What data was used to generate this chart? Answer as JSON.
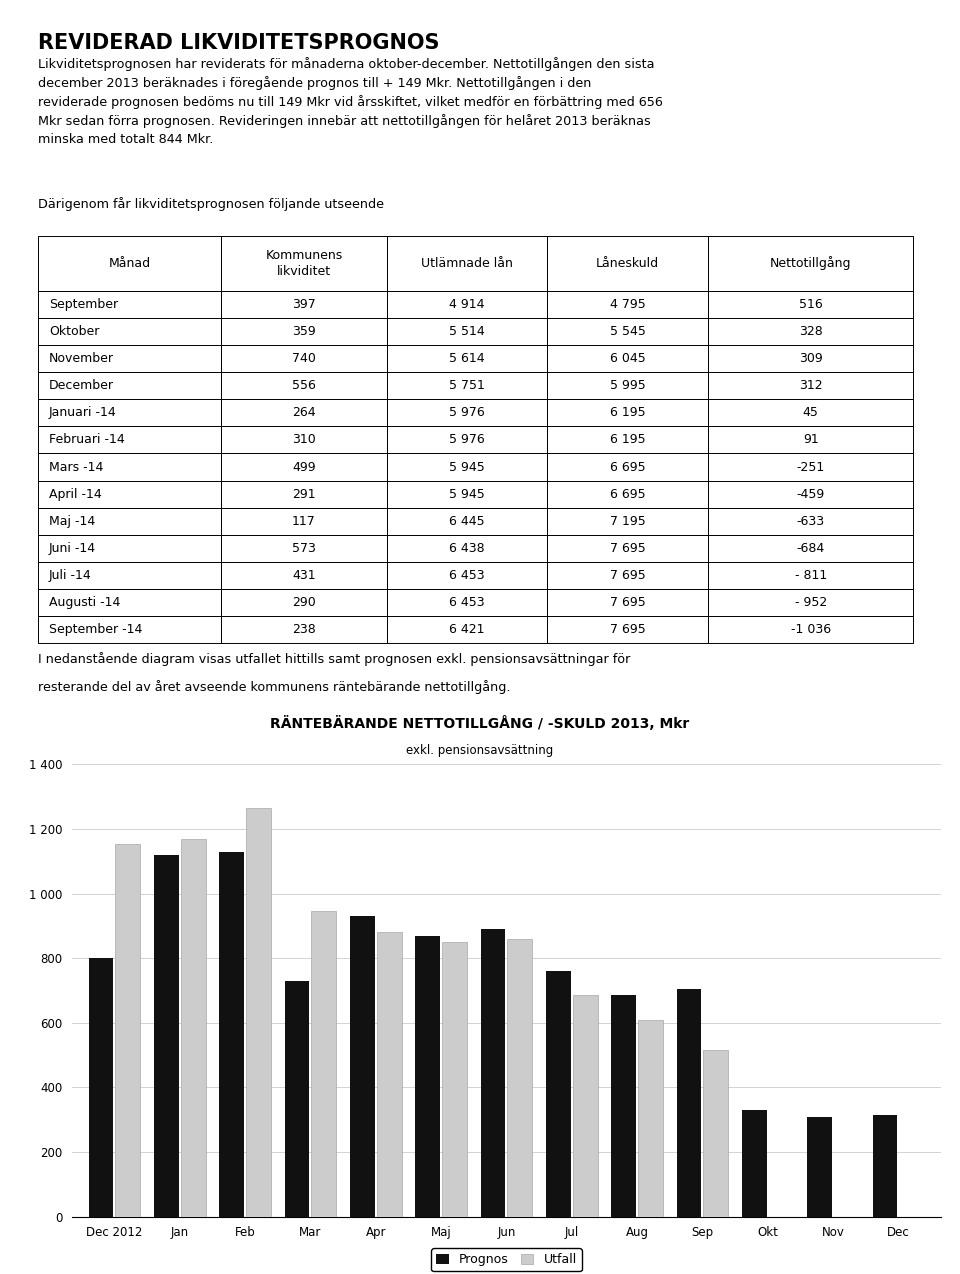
{
  "title": "REVIDERAD LIKVIDITETSPROGNOS",
  "intro_text": "Likviditetsprognosen har reviderats för månaderna oktober-december. Nettotillgången den sista\ndecember 2013 beräknades i föregående prognos till + 149 Mkr. Nettotillgången i den\nreviderade prognosen bedöms nu till 149 Mkr vid årsskiftet, vilket medför en förbättring med 656\nMkr sedan förra prognosen. Revideringen innebär att nettotillgången för helåret 2013 beräknas\nminska med totalt 844 Mkr.",
  "paragraph2": "Därigenom får likviditetsprognosen följande utseende",
  "chart_paragraph1": "I nedanstående diagram visas utfallet hittills samt prognosen exkl. pensionsavsättningar för",
  "chart_paragraph2": "resterande del av året avseende kommunens räntebärande nettotillgång.",
  "table_headers": [
    "Månad",
    "Kommunens\nlikviditet",
    "Utlämnade lån",
    "Låneskuld",
    "Nettotillgång"
  ],
  "table_data": [
    [
      "September",
      "397",
      "4 914",
      "4 795",
      "516"
    ],
    [
      "Oktober",
      "359",
      "5 514",
      "5 545",
      "328"
    ],
    [
      "November",
      "740",
      "5 614",
      "6 045",
      "309"
    ],
    [
      "December",
      "556",
      "5 751",
      "5 995",
      "312"
    ],
    [
      "Januari -14",
      "264",
      "5 976",
      "6 195",
      "45"
    ],
    [
      "Februari -14",
      "310",
      "5 976",
      "6 195",
      "91"
    ],
    [
      "Mars -14",
      "499",
      "5 945",
      "6 695",
      "-251"
    ],
    [
      "April -14",
      "291",
      "5 945",
      "6 695",
      "-459"
    ],
    [
      "Maj -14",
      "117",
      "6 445",
      "7 195",
      "-633"
    ],
    [
      "Juni -14",
      "573",
      "6 438",
      "7 695",
      "-684"
    ],
    [
      "Juli -14",
      "431",
      "6 453",
      "7 695",
      "- 811"
    ],
    [
      "Augusti -14",
      "290",
      "6 453",
      "7 695",
      "- 952"
    ],
    [
      "September -14",
      "238",
      "6 421",
      "7 695",
      "-1 036"
    ]
  ],
  "chart_title": "RÄNTEBÄRANDE NETTOTILLGÅNG / -SKULD 2013, Mkr",
  "chart_subtitle": "exkl. pensionsavsättning",
  "months": [
    "Dec 2012",
    "Jan",
    "Feb",
    "Mar",
    "Apr",
    "Maj",
    "Jun",
    "Jul",
    "Aug",
    "Sep",
    "Okt",
    "Nov",
    "Dec"
  ],
  "prognos": [
    800,
    1120,
    1130,
    730,
    930,
    870,
    890,
    760,
    685,
    705,
    330,
    310,
    315
  ],
  "utfall": [
    1155,
    1170,
    1265,
    945,
    880,
    850,
    860,
    685,
    610,
    515,
    null,
    null,
    null
  ],
  "ylim": [
    0,
    1400
  ],
  "yticks": [
    0,
    200,
    400,
    600,
    800,
    1000,
    1200,
    1400
  ],
  "prognos_color": "#111111",
  "utfall_color": "#cccccc",
  "legend_prognos": "Prognos",
  "legend_utfall": "Utfall",
  "fig_width": 9.6,
  "fig_height": 12.74
}
